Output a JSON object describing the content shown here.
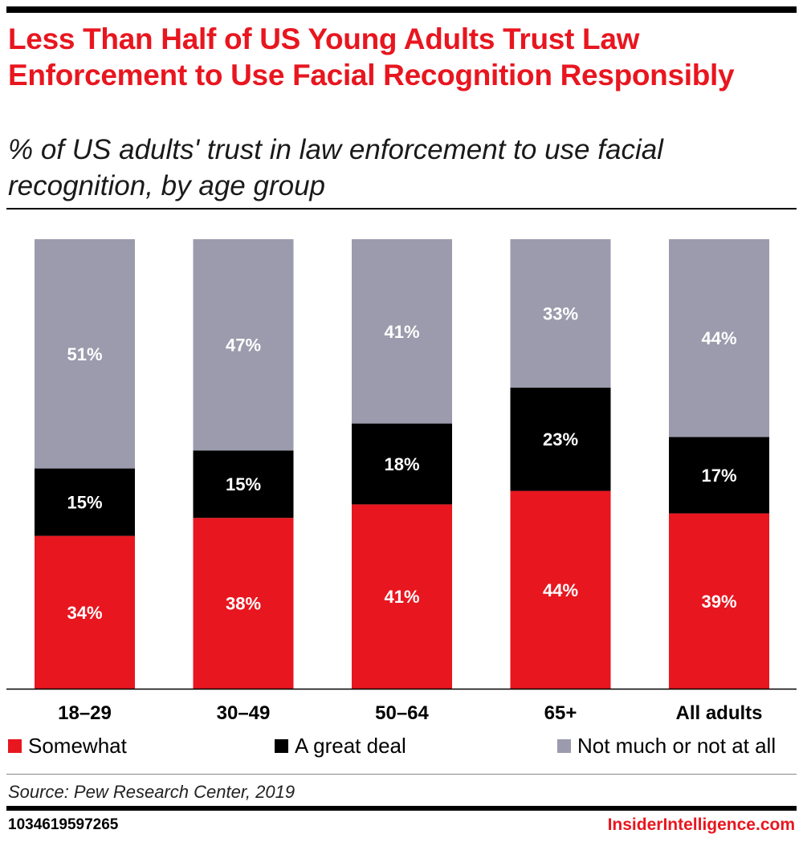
{
  "header": {
    "title": "Less Than Half of US Young Adults Trust Law Enforcement to Use Facial Recognition Responsibly",
    "subtitle": "% of US adults' trust in law enforcement to use facial recognition, by age group"
  },
  "chart_data": {
    "type": "bar",
    "stacked": true,
    "categories": [
      "18–29",
      "30–49",
      "50–64",
      "65+",
      "All adults"
    ],
    "series": [
      {
        "name": "Somewhat",
        "values": [
          34,
          38,
          41,
          44,
          39
        ],
        "labels": [
          "34%",
          "38%",
          "41%",
          "44%",
          "39%"
        ],
        "color": "#e8161f"
      },
      {
        "name": "A great deal",
        "values": [
          15,
          15,
          18,
          23,
          17
        ],
        "labels": [
          "15%",
          "15%",
          "18%",
          "23%",
          "17%"
        ],
        "color": "#000000"
      },
      {
        "name": "Not much or not at all",
        "values": [
          51,
          47,
          41,
          33,
          44
        ],
        "labels": [
          "51%",
          "47%",
          "41%",
          "33%",
          "44%"
        ],
        "color": "#9b9bad"
      }
    ],
    "ylim": [
      0,
      100
    ],
    "grid": false,
    "legend_position": "bottom"
  },
  "footer": {
    "source": "Source: Pew Research Center, 2019",
    "id": "1034619597265",
    "brand": "InsiderIntelligence.com"
  }
}
